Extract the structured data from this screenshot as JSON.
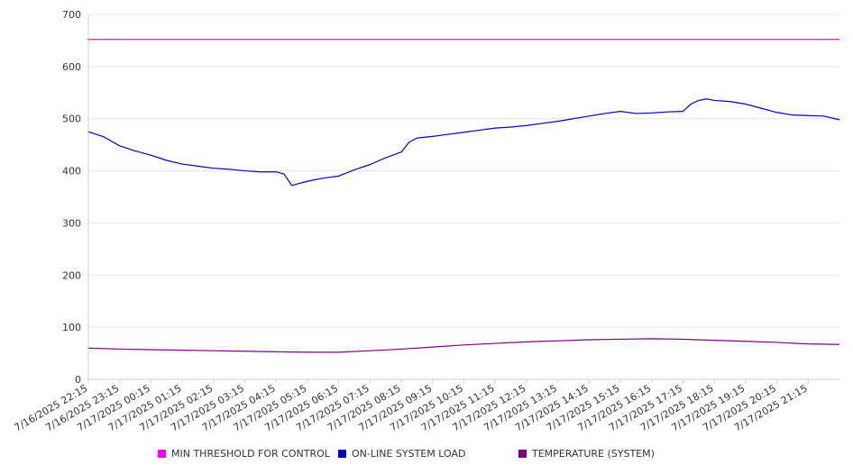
{
  "chart_data": {
    "type": "line",
    "xlabel": "",
    "ylabel": "",
    "ylim": [
      0,
      700
    ],
    "yticks": [
      0,
      100,
      200,
      300,
      400,
      500,
      600,
      700
    ],
    "grid": true,
    "legend_position": "bottom",
    "x_tick_labels": [
      "7/16/2025 22:15",
      "7/16/2025 23:15",
      "7/17/2025 00:15",
      "7/17/2025 01:15",
      "7/17/2025 02:15",
      "7/17/2025 03:15",
      "7/17/2025 04:15",
      "7/17/2025 05:15",
      "7/17/2025 06:15",
      "7/17/2025 07:15",
      "7/17/2025 08:15",
      "7/17/2025 09:15",
      "7/17/2025 10:15",
      "7/17/2025 11:15",
      "7/17/2025 12:15",
      "7/17/2025 13:15",
      "7/17/2025 14:15",
      "7/17/2025 15:15",
      "7/17/2025 16:15",
      "7/17/2025 17:15",
      "7/17/2025 18:15",
      "7/17/2025 19:15",
      "7/17/2025 20:15",
      "7/17/2025 21:15"
    ],
    "x_start": "7/16/2025 22:15",
    "x_end": "7/17/2025 22:15",
    "series": [
      {
        "name": "MIN THRESHOLD FOR CONTROL",
        "color": "#ff00ff",
        "points": [
          [
            "7/16/2025 22:15",
            652
          ],
          [
            "7/17/2025 22:15",
            652
          ]
        ]
      },
      {
        "name": "ON-LINE SYSTEM LOAD",
        "color": "#0000cc",
        "points": [
          [
            "7/16/2025 22:15",
            475
          ],
          [
            "7/16/2025 22:45",
            465
          ],
          [
            "7/16/2025 23:15",
            448
          ],
          [
            "7/16/2025 23:45",
            438
          ],
          [
            "7/17/2025 00:15",
            430
          ],
          [
            "7/17/2025 00:45",
            420
          ],
          [
            "7/17/2025 01:15",
            413
          ],
          [
            "7/17/2025 01:45",
            409
          ],
          [
            "7/17/2025 02:15",
            405
          ],
          [
            "7/17/2025 02:45",
            403
          ],
          [
            "7/17/2025 03:15",
            400
          ],
          [
            "7/17/2025 03:45",
            398
          ],
          [
            "7/17/2025 04:15",
            398
          ],
          [
            "7/17/2025 04:30",
            394
          ],
          [
            "7/17/2025 04:45",
            372
          ],
          [
            "7/17/2025 05:15",
            380
          ],
          [
            "7/17/2025 05:45",
            386
          ],
          [
            "7/17/2025 06:15",
            390
          ],
          [
            "7/17/2025 06:45",
            402
          ],
          [
            "7/17/2025 07:15",
            412
          ],
          [
            "7/17/2025 07:45",
            425
          ],
          [
            "7/17/2025 08:15",
            436
          ],
          [
            "7/17/2025 08:30",
            455
          ],
          [
            "7/17/2025 08:45",
            463
          ],
          [
            "7/17/2025 09:15",
            466
          ],
          [
            "7/17/2025 09:45",
            470
          ],
          [
            "7/17/2025 10:15",
            474
          ],
          [
            "7/17/2025 10:45",
            478
          ],
          [
            "7/17/2025 11:15",
            482
          ],
          [
            "7/17/2025 11:45",
            484
          ],
          [
            "7/17/2025 12:15",
            487
          ],
          [
            "7/17/2025 12:45",
            491
          ],
          [
            "7/17/2025 13:15",
            495
          ],
          [
            "7/17/2025 13:45",
            500
          ],
          [
            "7/17/2025 14:15",
            505
          ],
          [
            "7/17/2025 14:45",
            510
          ],
          [
            "7/17/2025 15:15",
            514
          ],
          [
            "7/17/2025 15:45",
            510
          ],
          [
            "7/17/2025 16:15",
            511
          ],
          [
            "7/17/2025 16:45",
            513
          ],
          [
            "7/17/2025 17:15",
            514
          ],
          [
            "7/17/2025 17:30",
            528
          ],
          [
            "7/17/2025 17:45",
            535
          ],
          [
            "7/17/2025 18:00",
            538
          ],
          [
            "7/17/2025 18:15",
            535
          ],
          [
            "7/17/2025 18:45",
            533
          ],
          [
            "7/17/2025 19:15",
            528
          ],
          [
            "7/17/2025 19:45",
            520
          ],
          [
            "7/17/2025 20:15",
            512
          ],
          [
            "7/17/2025 20:45",
            507
          ],
          [
            "7/17/2025 21:15",
            506
          ],
          [
            "7/17/2025 21:45",
            505
          ],
          [
            "7/17/2025 22:15",
            498
          ]
        ]
      },
      {
        "name": "TEMPERATURE (SYSTEM)",
        "color": "#800080",
        "points": [
          [
            "7/16/2025 22:15",
            60
          ],
          [
            "7/16/2025 23:15",
            58
          ],
          [
            "7/17/2025 00:15",
            57
          ],
          [
            "7/17/2025 01:15",
            56
          ],
          [
            "7/17/2025 02:15",
            55
          ],
          [
            "7/17/2025 03:15",
            54
          ],
          [
            "7/17/2025 04:15",
            53
          ],
          [
            "7/17/2025 05:15",
            52
          ],
          [
            "7/17/2025 06:15",
            52
          ],
          [
            "7/17/2025 07:15",
            55
          ],
          [
            "7/17/2025 08:15",
            58
          ],
          [
            "7/17/2025 09:15",
            62
          ],
          [
            "7/17/2025 10:15",
            66
          ],
          [
            "7/17/2025 11:15",
            69
          ],
          [
            "7/17/2025 12:15",
            72
          ],
          [
            "7/17/2025 13:15",
            74
          ],
          [
            "7/17/2025 14:15",
            76
          ],
          [
            "7/17/2025 15:15",
            77
          ],
          [
            "7/17/2025 16:15",
            78
          ],
          [
            "7/17/2025 17:15",
            77
          ],
          [
            "7/17/2025 18:15",
            75
          ],
          [
            "7/17/2025 19:15",
            73
          ],
          [
            "7/17/2025 20:15",
            71
          ],
          [
            "7/17/2025 21:15",
            68
          ],
          [
            "7/17/2025 22:15",
            67
          ]
        ]
      }
    ]
  }
}
